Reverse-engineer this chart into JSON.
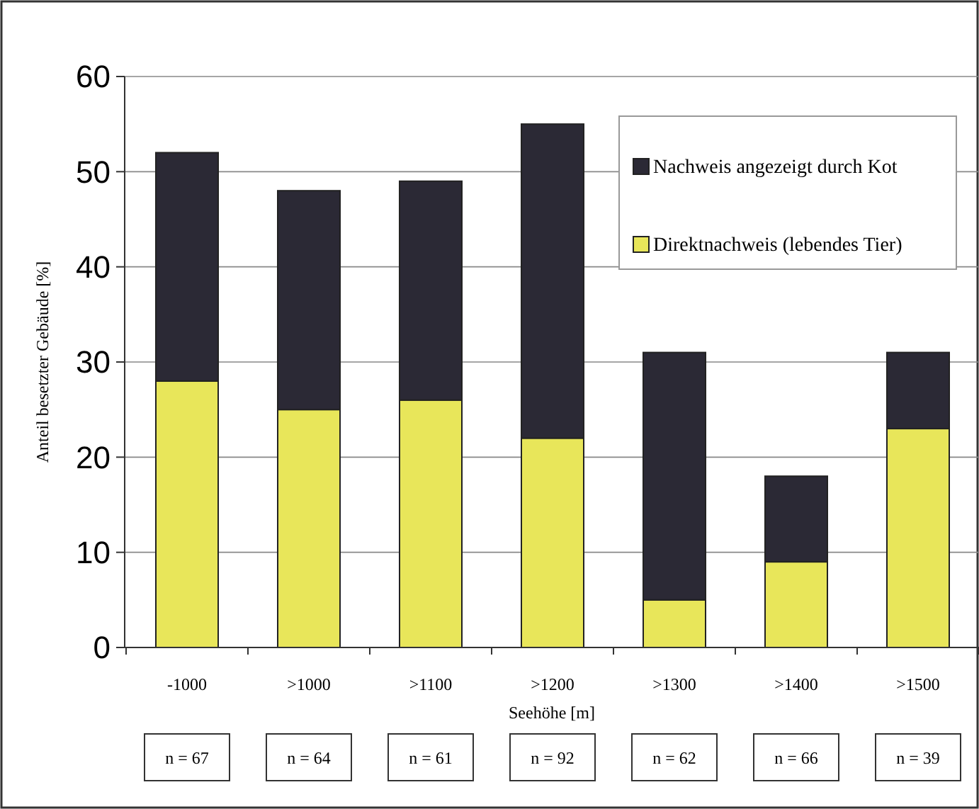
{
  "chart_data": {
    "type": "bar",
    "stacked": true,
    "xlabel": "Seehöhe [m]",
    "ylabel": "Anteil besetzter Gebäude [%]",
    "categories": [
      "-1000",
      ">1000",
      ">1100",
      ">1200",
      ">1300",
      ">1400",
      ">1500"
    ],
    "series": [
      {
        "name": "Direktnachweis (lebendes Tier)",
        "color": "#e8e65a",
        "values": [
          28,
          25,
          26,
          22,
          5,
          9,
          23
        ]
      },
      {
        "name": "Nachweis angezeigt durch Kot",
        "color": "#2b2935",
        "values": [
          24,
          23,
          23,
          33,
          26,
          9,
          8
        ]
      }
    ],
    "ylim": [
      0,
      60
    ],
    "yticks": [
      0,
      10,
      20,
      30,
      40,
      50,
      60
    ],
    "grid": "y",
    "legend": "top right",
    "annotations": [
      "n = 67",
      "n = 64",
      "n = 61",
      "n = 92",
      "n = 62",
      "n = 66",
      "n = 39"
    ]
  }
}
